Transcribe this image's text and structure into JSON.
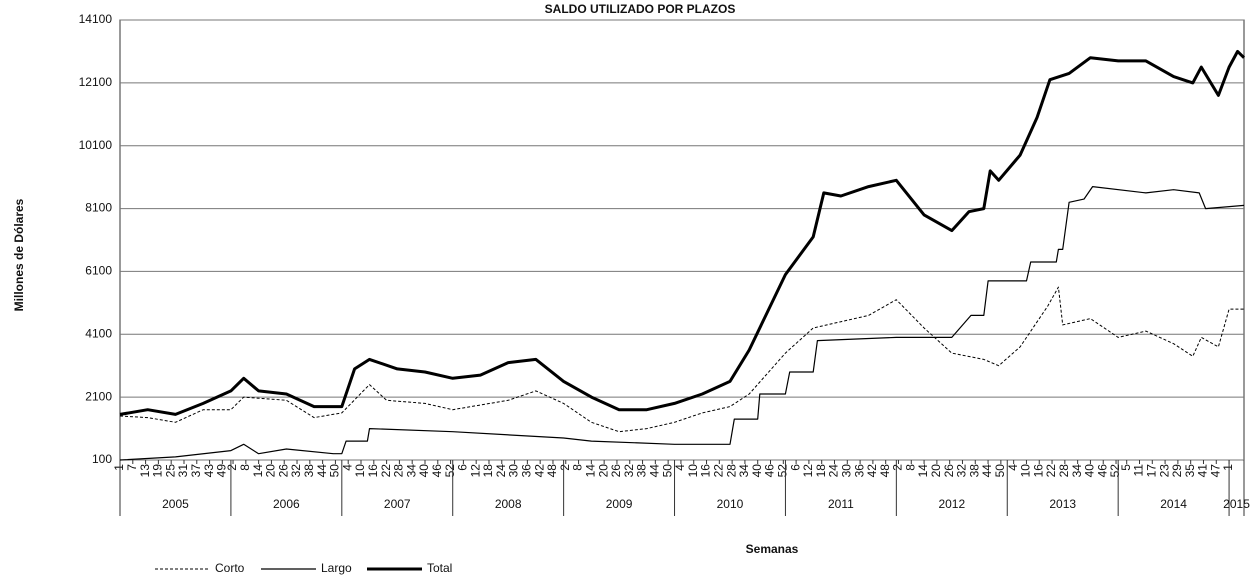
{
  "chart_data": {
    "type": "line",
    "title": "SALDO UTILIZADO POR PLAZOS",
    "y_label": "Millones de Dólares",
    "x_label": "Semanas",
    "ylim": [
      100,
      14100
    ],
    "yticks": [
      100,
      2100,
      4100,
      6100,
      8100,
      10100,
      12100,
      14100
    ],
    "xlim": [
      0,
      527
    ],
    "grid": true,
    "legend": "bottom-left",
    "xticks": [
      {
        "value": 0,
        "label": "1"
      },
      {
        "value": 6,
        "label": "7"
      },
      {
        "value": 12,
        "label": "13"
      },
      {
        "value": 18,
        "label": "19"
      },
      {
        "value": 24,
        "label": "25"
      },
      {
        "value": 30,
        "label": "31"
      },
      {
        "value": 36,
        "label": "37"
      },
      {
        "value": 42,
        "label": "43"
      },
      {
        "value": 48,
        "label": "49"
      },
      {
        "value": 53,
        "label": "2"
      },
      {
        "value": 59,
        "label": "8"
      },
      {
        "value": 65,
        "label": "14"
      },
      {
        "value": 71,
        "label": "20"
      },
      {
        "value": 77,
        "label": "26"
      },
      {
        "value": 83,
        "label": "32"
      },
      {
        "value": 89,
        "label": "38"
      },
      {
        "value": 95,
        "label": "44"
      },
      {
        "value": 101,
        "label": "50"
      },
      {
        "value": 107,
        "label": "4"
      },
      {
        "value": 113,
        "label": "10"
      },
      {
        "value": 119,
        "label": "16"
      },
      {
        "value": 125,
        "label": "22"
      },
      {
        "value": 131,
        "label": "28"
      },
      {
        "value": 137,
        "label": "34"
      },
      {
        "value": 143,
        "label": "40"
      },
      {
        "value": 149,
        "label": "46"
      },
      {
        "value": 155,
        "label": "52"
      },
      {
        "value": 161,
        "label": "6"
      },
      {
        "value": 167,
        "label": "12"
      },
      {
        "value": 173,
        "label": "18"
      },
      {
        "value": 179,
        "label": "24"
      },
      {
        "value": 185,
        "label": "30"
      },
      {
        "value": 191,
        "label": "36"
      },
      {
        "value": 197,
        "label": "42"
      },
      {
        "value": 203,
        "label": "48"
      },
      {
        "value": 209,
        "label": "2"
      },
      {
        "value": 215,
        "label": "8"
      },
      {
        "value": 221,
        "label": "14"
      },
      {
        "value": 227,
        "label": "20"
      },
      {
        "value": 233,
        "label": "26"
      },
      {
        "value": 239,
        "label": "32"
      },
      {
        "value": 245,
        "label": "38"
      },
      {
        "value": 251,
        "label": "44"
      },
      {
        "value": 257,
        "label": "50"
      },
      {
        "value": 263,
        "label": "4"
      },
      {
        "value": 269,
        "label": "10"
      },
      {
        "value": 275,
        "label": "16"
      },
      {
        "value": 281,
        "label": "22"
      },
      {
        "value": 287,
        "label": "28"
      },
      {
        "value": 293,
        "label": "34"
      },
      {
        "value": 299,
        "label": "40"
      },
      {
        "value": 305,
        "label": "46"
      },
      {
        "value": 311,
        "label": "52"
      },
      {
        "value": 317,
        "label": "6"
      },
      {
        "value": 323,
        "label": "12"
      },
      {
        "value": 329,
        "label": "18"
      },
      {
        "value": 335,
        "label": "24"
      },
      {
        "value": 341,
        "label": "30"
      },
      {
        "value": 347,
        "label": "36"
      },
      {
        "value": 353,
        "label": "42"
      },
      {
        "value": 359,
        "label": "48"
      },
      {
        "value": 365,
        "label": "2"
      },
      {
        "value": 371,
        "label": "8"
      },
      {
        "value": 377,
        "label": "14"
      },
      {
        "value": 383,
        "label": "20"
      },
      {
        "value": 389,
        "label": "26"
      },
      {
        "value": 395,
        "label": "32"
      },
      {
        "value": 401,
        "label": "38"
      },
      {
        "value": 407,
        "label": "44"
      },
      {
        "value": 413,
        "label": "50"
      },
      {
        "value": 419,
        "label": "4"
      },
      {
        "value": 425,
        "label": "10"
      },
      {
        "value": 431,
        "label": "16"
      },
      {
        "value": 437,
        "label": "22"
      },
      {
        "value": 443,
        "label": "28"
      },
      {
        "value": 449,
        "label": "34"
      },
      {
        "value": 455,
        "label": "40"
      },
      {
        "value": 461,
        "label": "46"
      },
      {
        "value": 467,
        "label": "52"
      },
      {
        "value": 472,
        "label": "5"
      },
      {
        "value": 478,
        "label": "11"
      },
      {
        "value": 484,
        "label": "17"
      },
      {
        "value": 490,
        "label": "23"
      },
      {
        "value": 496,
        "label": "29"
      },
      {
        "value": 502,
        "label": "35"
      },
      {
        "value": 508,
        "label": "41"
      },
      {
        "value": 514,
        "label": "47"
      },
      {
        "value": 520,
        "label": "1"
      }
    ],
    "years": [
      {
        "value": 0,
        "label": "2005"
      },
      {
        "value": 52,
        "label": "2006"
      },
      {
        "value": 104,
        "label": "2007"
      },
      {
        "value": 156,
        "label": "2008"
      },
      {
        "value": 208,
        "label": "2009"
      },
      {
        "value": 260,
        "label": "2010"
      },
      {
        "value": 312,
        "label": "2011"
      },
      {
        "value": 364,
        "label": "2012"
      },
      {
        "value": 416,
        "label": "2013"
      },
      {
        "value": 468,
        "label": "2014"
      },
      {
        "value": 520,
        "label": "2015"
      }
    ],
    "series": [
      {
        "name": "Corto",
        "color": "#000000",
        "line_style": "dashed",
        "line_width": 1,
        "x": [
          0,
          13,
          26,
          39,
          52,
          58,
          78,
          91,
          104,
          117,
          125,
          143,
          156,
          182,
          195,
          208,
          221,
          234,
          247,
          260,
          273,
          286,
          295,
          312,
          325,
          338,
          351,
          364,
          377,
          390,
          405,
          412,
          422,
          435,
          440,
          442,
          455,
          468,
          481,
          494,
          503,
          507,
          515,
          520,
          527
        ],
        "values": [
          1500,
          1450,
          1300,
          1700,
          1700,
          2100,
          2000,
          1450,
          1600,
          2500,
          2000,
          1900,
          1700,
          2000,
          2300,
          1900,
          1300,
          1000,
          1100,
          1300,
          1600,
          1800,
          2200,
          3500,
          4300,
          4500,
          4700,
          5200,
          4300,
          3500,
          3300,
          3100,
          3700,
          5000,
          5600,
          4400,
          4600,
          4000,
          4200,
          3800,
          3400,
          4000,
          3700,
          4900,
          4900
        ]
      },
      {
        "name": "Largo",
        "color": "#000000",
        "line_style": "solid",
        "line_width": 1.2,
        "x": [
          0,
          26,
          52,
          58,
          65,
          78,
          100,
          104,
          106,
          116,
          117,
          156,
          208,
          221,
          260,
          286,
          288,
          299,
          300,
          312,
          314,
          325,
          327,
          364,
          390,
          399,
          405,
          407,
          425,
          427,
          439,
          440,
          442,
          445,
          452,
          456,
          481,
          494,
          506,
          509,
          527
        ],
        "values": [
          100,
          200,
          400,
          600,
          300,
          450,
          300,
          300,
          700,
          700,
          1100,
          1000,
          800,
          700,
          600,
          600,
          1400,
          1400,
          2200,
          2200,
          2900,
          2900,
          3900,
          4000,
          4000,
          4700,
          4700,
          5800,
          5800,
          6400,
          6400,
          6800,
          6800,
          8300,
          8400,
          8800,
          8600,
          8700,
          8600,
          8100,
          8200
        ]
      },
      {
        "name": "Total",
        "color": "#000000",
        "line_style": "solid",
        "line_width": 3,
        "x": [
          0,
          13,
          26,
          39,
          52,
          58,
          65,
          78,
          91,
          104,
          110,
          117,
          130,
          143,
          156,
          169,
          182,
          195,
          208,
          221,
          234,
          247,
          260,
          273,
          286,
          295,
          312,
          325,
          330,
          338,
          351,
          364,
          377,
          390,
          398,
          405,
          408,
          412,
          422,
          430,
          436,
          445,
          455,
          468,
          481,
          494,
          503,
          507,
          515,
          520,
          524,
          527
        ],
        "values": [
          1550,
          1700,
          1550,
          1900,
          2300,
          2700,
          2300,
          2200,
          1800,
          1800,
          3000,
          3300,
          3000,
          2900,
          2700,
          2800,
          3200,
          3300,
          2600,
          2100,
          1700,
          1700,
          1900,
          2200,
          2600,
          3600,
          6000,
          7200,
          8600,
          8500,
          8800,
          9000,
          7900,
          7400,
          8000,
          8100,
          9300,
          9000,
          9800,
          11000,
          12200,
          12400,
          12900,
          12800,
          12800,
          12300,
          12100,
          12600,
          11700,
          12600,
          13100,
          12900
        ]
      }
    ]
  }
}
